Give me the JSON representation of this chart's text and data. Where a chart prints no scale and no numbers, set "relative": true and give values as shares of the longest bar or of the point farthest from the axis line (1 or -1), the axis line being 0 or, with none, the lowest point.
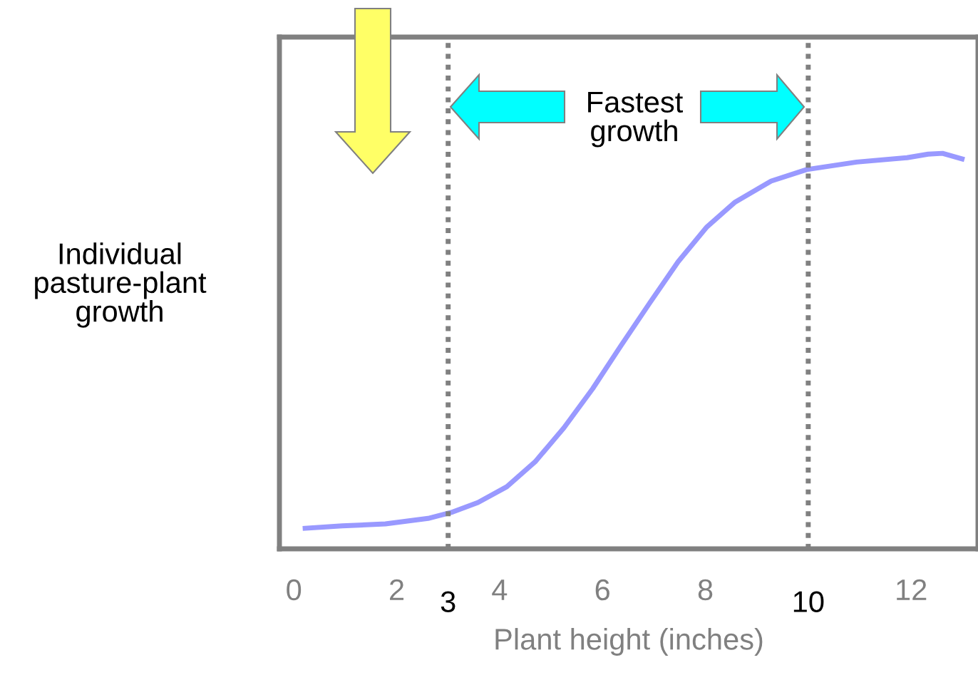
{
  "chart_data": {
    "type": "line",
    "relative": true,
    "xlabel": "Plant height (inches)",
    "ylabel": "Individual\npasture-plant\ngrowth",
    "annotations": [
      "Fastest\ngrowth"
    ],
    "xlim": [
      -0.28,
      13.3
    ],
    "xticks": [
      0,
      2,
      4,
      6,
      8,
      12
    ],
    "ref_lines": [
      {
        "axis": "x",
        "value": 3,
        "label": "3",
        "color": "#808080",
        "line_style": "dotted"
      },
      {
        "axis": "x",
        "value": 10,
        "label": "10",
        "color": "#808080",
        "line_style": "dotted"
      }
    ],
    "grid": false,
    "legend": false,
    "marker": "none",
    "line_style": "solid",
    "series": [
      {
        "color": "#9999ff",
        "x": [
          0.22,
          0.94,
          1.78,
          2.61,
          3.06,
          3.58,
          4.14,
          4.69,
          5.25,
          5.81,
          6.36,
          6.92,
          7.47,
          8.03,
          8.58,
          9.28,
          9.97,
          10.94,
          11.92,
          12.33,
          12.61,
          12.99
        ],
        "values": [
          0.052,
          0.058,
          0.063,
          0.077,
          0.092,
          0.117,
          0.157,
          0.22,
          0.306,
          0.405,
          0.514,
          0.622,
          0.726,
          0.814,
          0.877,
          0.93,
          0.959,
          0.978,
          0.989,
          0.998,
          1.0,
          0.986
        ]
      }
    ]
  }
}
